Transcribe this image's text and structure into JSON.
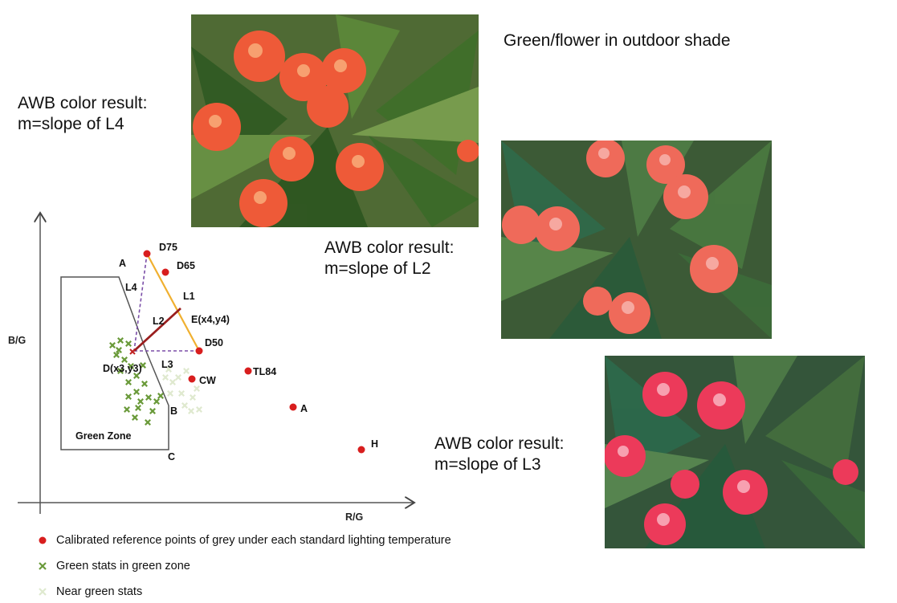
{
  "captions": {
    "top_right": "Green/flower in outdoor shade",
    "l4_line1": "AWB color result:",
    "l4_line2": "m=slope of L4",
    "l2_line1": "AWB color result:",
    "l2_line2": "m=slope of L2",
    "l3_line1": "AWB color result:",
    "l3_line2": "m=slope of L3"
  },
  "diagram": {
    "y_axis_label": "B/G",
    "x_axis_label": "R/G",
    "zone_label": "Green Zone",
    "zone_corners": {
      "a": "A",
      "b": "B",
      "c": "C"
    },
    "lines": {
      "l1": "L1",
      "l2": "L2",
      "l3": "L3",
      "l4": "L4"
    },
    "points": {
      "d75": "D75",
      "d65": "D65",
      "d50": "D50",
      "cw": "CW",
      "tl84": "TL84",
      "a": "A",
      "h": "H",
      "e": "E(x4,y4)",
      "d": "D(x3,y3)"
    },
    "colors": {
      "reference_point": "#d81e1e",
      "green_stat": "#6a9a3a",
      "near_green_stat": "#dfe9cf",
      "l1_line": "#f0b030",
      "l2_line": "#9a1e1e",
      "dashed_line": "#7b4fa8",
      "zone_border": "#555555"
    }
  },
  "legend": {
    "items": [
      {
        "label": "Calibrated reference points of grey under each standard lighting temperature",
        "marker": "red-dot"
      },
      {
        "label": "Green stats in green zone",
        "marker": "green-x"
      },
      {
        "label": "Near green stats",
        "marker": "pale-x"
      }
    ]
  },
  "photos": {
    "top": "flower-photo",
    "middle": "flower-photo",
    "bottom": "flower-photo"
  }
}
